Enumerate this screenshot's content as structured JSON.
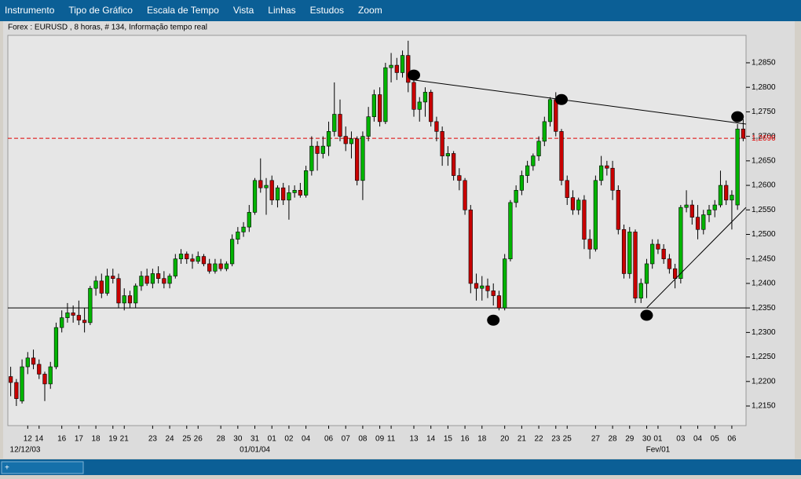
{
  "menu": [
    "Instrumento",
    "Tipo de Gráfico",
    "Escala de Tempo",
    "Vista",
    "Linhas",
    "Estudos",
    "Zoom"
  ],
  "chart_data": {
    "type": "candlestick",
    "title": "Forex : EURUSD , 8 horas, # 134, Informação tempo real",
    "ylim": [
      1.211,
      1.2906
    ],
    "yticks": [
      {
        "value": 1.215,
        "label": "1,2150"
      },
      {
        "value": 1.22,
        "label": "1,2200"
      },
      {
        "value": 1.225,
        "label": "1,2250"
      },
      {
        "value": 1.23,
        "label": "1,2300"
      },
      {
        "value": 1.235,
        "label": "1,2350"
      },
      {
        "value": 1.24,
        "label": "1,2400"
      },
      {
        "value": 1.245,
        "label": "1,2450"
      },
      {
        "value": 1.25,
        "label": "1,2500"
      },
      {
        "value": 1.255,
        "label": "1,2550"
      },
      {
        "value": 1.26,
        "label": "1,2600"
      },
      {
        "value": 1.265,
        "label": "1,2650"
      },
      {
        "value": 1.27,
        "label": "1,2700"
      },
      {
        "value": 1.275,
        "label": "1,2750"
      },
      {
        "value": 1.28,
        "label": "1,2800"
      },
      {
        "value": 1.285,
        "label": "1,2850"
      }
    ],
    "up_color": "#00b400",
    "down_color": "#c80000",
    "last_price": {
      "value": 1.2696,
      "label": "1,2696",
      "color": "#e00000"
    },
    "support_line": 1.235,
    "trendlines": [
      {
        "from": [
          71,
          1.2815
        ],
        "to": [
          130,
          1.2725
        ]
      },
      {
        "from": [
          112,
          1.235
        ],
        "to": [
          130,
          1.2555
        ]
      }
    ],
    "markers": [
      [
        71,
        1.2825
      ],
      [
        85,
        1.2325
      ],
      [
        97,
        1.2775
      ],
      [
        112,
        1.2335
      ],
      [
        128,
        1.274
      ]
    ],
    "categories": [
      null,
      null,
      null,
      "12",
      null,
      "14",
      null,
      null,
      null,
      "16",
      null,
      null,
      "17",
      null,
      null,
      "18",
      null,
      null,
      "19",
      null,
      "21",
      null,
      null,
      null,
      null,
      "23",
      null,
      null,
      "24",
      null,
      null,
      "25",
      null,
      "26",
      null,
      null,
      null,
      "28",
      null,
      null,
      "30",
      null,
      null,
      "31",
      null,
      null,
      "01",
      null,
      null,
      "02",
      null,
      null,
      "04",
      null,
      null,
      null,
      "06",
      null,
      null,
      "07",
      null,
      null,
      "08",
      null,
      null,
      "09",
      null,
      "11",
      null,
      null,
      null,
      "13",
      null,
      null,
      "14",
      null,
      null,
      "15",
      null,
      null,
      "16",
      null,
      null,
      "18",
      null,
      null,
      null,
      "20",
      null,
      null,
      "21",
      null,
      null,
      "22",
      null,
      null,
      "23",
      null,
      "25",
      null,
      null,
      null,
      null,
      "27",
      null,
      null,
      "28",
      null,
      null,
      "29",
      null,
      null,
      "30",
      null,
      "01",
      null,
      null,
      null,
      "03",
      null,
      null,
      "04",
      null,
      null,
      "05",
      null,
      null,
      "06",
      null,
      null
    ],
    "date_labels": [
      "12/12/03",
      null,
      null,
      null,
      null,
      null,
      null,
      null,
      null,
      null,
      null,
      null,
      null,
      null,
      null,
      null,
      null,
      null,
      null,
      null,
      null,
      null,
      null,
      null,
      null,
      null,
      null,
      null,
      null,
      null,
      null,
      null,
      null,
      null,
      null,
      null,
      null,
      null,
      null,
      null,
      null,
      null,
      null,
      "01/01/04",
      null,
      null,
      null,
      null,
      null,
      null,
      null,
      null,
      null,
      null,
      null,
      null,
      null,
      null,
      null,
      null,
      null,
      null,
      null,
      null,
      null,
      null,
      null,
      null,
      null,
      null,
      null,
      null,
      null,
      null,
      null,
      null,
      null,
      null,
      null,
      null,
      null,
      null,
      null,
      null,
      null,
      null,
      null,
      null,
      null,
      null,
      null,
      null,
      null,
      null,
      null,
      null,
      null,
      null,
      null,
      null,
      null,
      null,
      null,
      null,
      null,
      null,
      null,
      null,
      null,
      null,
      null,
      null,
      null,
      null,
      "Fev/01",
      null,
      null,
      null,
      null,
      null,
      null,
      null,
      null,
      null,
      null,
      null,
      null,
      null,
      null,
      null,
      null,
      null
    ],
    "candles": [
      [
        1.221,
        1.223,
        1.217,
        1.2198
      ],
      [
        1.2198,
        1.2205,
        1.215,
        1.2165
      ],
      [
        1.216,
        1.2245,
        1.2155,
        1.223
      ],
      [
        1.223,
        1.226,
        1.2215,
        1.2248
      ],
      [
        1.2248,
        1.2265,
        1.2225,
        1.2235
      ],
      [
        1.2235,
        1.2245,
        1.2205,
        1.2215
      ],
      [
        1.2215,
        1.222,
        1.216,
        1.2195
      ],
      [
        1.2195,
        1.224,
        1.2185,
        1.223
      ],
      [
        1.223,
        1.232,
        1.2225,
        1.231
      ],
      [
        1.231,
        1.2345,
        1.23,
        1.233
      ],
      [
        1.233,
        1.236,
        1.232,
        1.234
      ],
      [
        1.234,
        1.2355,
        1.232,
        1.2335
      ],
      [
        1.2335,
        1.2365,
        1.2315,
        1.2325
      ],
      [
        1.2325,
        1.235,
        1.23,
        1.232
      ],
      [
        1.232,
        1.2395,
        1.2315,
        1.239
      ],
      [
        1.239,
        1.2415,
        1.2375,
        1.2405
      ],
      [
        1.2405,
        1.242,
        1.237,
        1.238
      ],
      [
        1.238,
        1.243,
        1.2375,
        1.2415
      ],
      [
        1.2415,
        1.243,
        1.24,
        1.241
      ],
      [
        1.241,
        1.242,
        1.235,
        1.236
      ],
      [
        1.236,
        1.239,
        1.2345,
        1.2375
      ],
      [
        1.2375,
        1.2385,
        1.235,
        1.236
      ],
      [
        1.236,
        1.24,
        1.235,
        1.2395
      ],
      [
        1.2395,
        1.2425,
        1.2385,
        1.2415
      ],
      [
        1.2415,
        1.243,
        1.2395,
        1.24
      ],
      [
        1.24,
        1.243,
        1.239,
        1.242
      ],
      [
        1.242,
        1.2435,
        1.24,
        1.241
      ],
      [
        1.241,
        1.2425,
        1.239,
        1.24
      ],
      [
        1.24,
        1.242,
        1.239,
        1.2415
      ],
      [
        1.2415,
        1.246,
        1.241,
        1.245
      ],
      [
        1.245,
        1.247,
        1.244,
        1.246
      ],
      [
        1.246,
        1.2465,
        1.244,
        1.245
      ],
      [
        1.245,
        1.246,
        1.243,
        1.2445
      ],
      [
        1.2445,
        1.2465,
        1.244,
        1.2455
      ],
      [
        1.2455,
        1.246,
        1.2435,
        1.244
      ],
      [
        1.244,
        1.245,
        1.242,
        1.2425
      ],
      [
        1.2425,
        1.245,
        1.242,
        1.244
      ],
      [
        1.244,
        1.245,
        1.2425,
        1.243
      ],
      [
        1.243,
        1.2445,
        1.2425,
        1.244
      ],
      [
        1.244,
        1.25,
        1.2435,
        1.249
      ],
      [
        1.249,
        1.2515,
        1.248,
        1.2505
      ],
      [
        1.2505,
        1.2525,
        1.2495,
        1.2515
      ],
      [
        1.2515,
        1.256,
        1.2505,
        1.2545
      ],
      [
        1.2545,
        1.2615,
        1.254,
        1.261
      ],
      [
        1.261,
        1.2655,
        1.2585,
        1.2595
      ],
      [
        1.2595,
        1.2615,
        1.254,
        1.26
      ],
      [
        1.261,
        1.262,
        1.256,
        1.257
      ],
      [
        1.257,
        1.26,
        1.2555,
        1.2595
      ],
      [
        1.2595,
        1.2605,
        1.256,
        1.257
      ],
      [
        1.257,
        1.26,
        1.253,
        1.2585
      ],
      [
        1.2585,
        1.26,
        1.2575,
        1.259
      ],
      [
        1.259,
        1.2605,
        1.2575,
        1.258
      ],
      [
        1.258,
        1.264,
        1.2575,
        1.263
      ],
      [
        1.263,
        1.27,
        1.262,
        1.268
      ],
      [
        1.268,
        1.269,
        1.263,
        1.2665
      ],
      [
        1.2665,
        1.27,
        1.2655,
        1.268
      ],
      [
        1.268,
        1.273,
        1.266,
        1.271
      ],
      [
        1.271,
        1.281,
        1.27,
        1.2745
      ],
      [
        1.2745,
        1.2775,
        1.269,
        1.27
      ],
      [
        1.27,
        1.272,
        1.267,
        1.2685
      ],
      [
        1.2685,
        1.271,
        1.2655,
        1.2695
      ],
      [
        1.2695,
        1.27,
        1.26,
        1.261
      ],
      [
        1.261,
        1.271,
        1.257,
        1.27
      ],
      [
        1.27,
        1.276,
        1.269,
        1.274
      ],
      [
        1.274,
        1.2795,
        1.273,
        1.2785
      ],
      [
        1.2785,
        1.28,
        1.272,
        1.273
      ],
      [
        1.273,
        1.285,
        1.2725,
        1.284
      ],
      [
        1.284,
        1.287,
        1.281,
        1.2845
      ],
      [
        1.2845,
        1.286,
        1.2815,
        1.283
      ],
      [
        1.283,
        1.2875,
        1.282,
        1.2865
      ],
      [
        1.2865,
        1.2895,
        1.279,
        1.281
      ],
      [
        1.281,
        1.2815,
        1.274,
        1.2755
      ],
      [
        1.2755,
        1.278,
        1.273,
        1.277
      ],
      [
        1.277,
        1.28,
        1.274,
        1.279
      ],
      [
        1.279,
        1.2795,
        1.272,
        1.273
      ],
      [
        1.273,
        1.274,
        1.269,
        1.271
      ],
      [
        1.271,
        1.272,
        1.264,
        1.266
      ],
      [
        1.266,
        1.268,
        1.264,
        1.2665
      ],
      [
        1.2665,
        1.267,
        1.261,
        1.262
      ],
      [
        1.262,
        1.2635,
        1.259,
        1.261
      ],
      [
        1.261,
        1.2615,
        1.254,
        1.255
      ],
      [
        1.255,
        1.256,
        1.238,
        1.24
      ],
      [
        1.24,
        1.242,
        1.2365,
        1.239
      ],
      [
        1.239,
        1.2415,
        1.2365,
        1.2395
      ],
      [
        1.2395,
        1.241,
        1.237,
        1.2385
      ],
      [
        1.2385,
        1.24,
        1.2355,
        1.2375
      ],
      [
        1.2375,
        1.2385,
        1.2345,
        1.235
      ],
      [
        1.235,
        1.246,
        1.2345,
        1.245
      ],
      [
        1.245,
        1.257,
        1.2445,
        1.2565
      ],
      [
        1.2565,
        1.26,
        1.2555,
        1.259
      ],
      [
        1.259,
        1.263,
        1.258,
        1.262
      ],
      [
        1.262,
        1.265,
        1.2605,
        1.264
      ],
      [
        1.264,
        1.2665,
        1.263,
        1.266
      ],
      [
        1.266,
        1.27,
        1.265,
        1.269
      ],
      [
        1.269,
        1.274,
        1.268,
        1.273
      ],
      [
        1.273,
        1.278,
        1.272,
        1.2775
      ],
      [
        1.2775,
        1.279,
        1.27,
        1.271
      ],
      [
        1.271,
        1.2715,
        1.26,
        1.261
      ],
      [
        1.261,
        1.262,
        1.256,
        1.2575
      ],
      [
        1.2575,
        1.259,
        1.254,
        1.255
      ],
      [
        1.255,
        1.2575,
        1.254,
        1.257
      ],
      [
        1.257,
        1.258,
        1.247,
        1.249
      ],
      [
        1.249,
        1.251,
        1.245,
        1.247
      ],
      [
        1.247,
        1.262,
        1.2465,
        1.261
      ],
      [
        1.261,
        1.266,
        1.26,
        1.264
      ],
      [
        1.264,
        1.265,
        1.262,
        1.2635
      ],
      [
        1.2635,
        1.265,
        1.257,
        1.259
      ],
      [
        1.259,
        1.26,
        1.25,
        1.251
      ],
      [
        1.251,
        1.252,
        1.241,
        1.242
      ],
      [
        1.242,
        1.2515,
        1.241,
        1.2505
      ],
      [
        1.2505,
        1.251,
        1.236,
        1.237
      ],
      [
        1.237,
        1.241,
        1.236,
        1.24
      ],
      [
        1.24,
        1.245,
        1.237,
        1.244
      ],
      [
        1.244,
        1.249,
        1.243,
        1.248
      ],
      [
        1.248,
        1.249,
        1.246,
        1.247
      ],
      [
        1.247,
        1.248,
        1.244,
        1.245
      ],
      [
        1.245,
        1.246,
        1.242,
        1.243
      ],
      [
        1.243,
        1.244,
        1.239,
        1.241
      ],
      [
        1.241,
        1.256,
        1.24,
        1.2555
      ],
      [
        1.2555,
        1.259,
        1.2545,
        1.256
      ],
      [
        1.256,
        1.257,
        1.252,
        1.2535
      ],
      [
        1.2535,
        1.256,
        1.249,
        1.251
      ],
      [
        1.251,
        1.255,
        1.25,
        1.254
      ],
      [
        1.254,
        1.256,
        1.2525,
        1.255
      ],
      [
        1.255,
        1.257,
        1.2535,
        1.256
      ],
      [
        1.256,
        1.263,
        1.2555,
        1.26
      ],
      [
        1.26,
        1.261,
        1.256,
        1.257
      ],
      [
        1.257,
        1.259,
        1.251,
        1.258
      ],
      [
        1.256,
        1.2725,
        1.255,
        1.2715
      ],
      [
        1.2715,
        1.2735,
        1.269,
        1.2696
      ]
    ]
  }
}
